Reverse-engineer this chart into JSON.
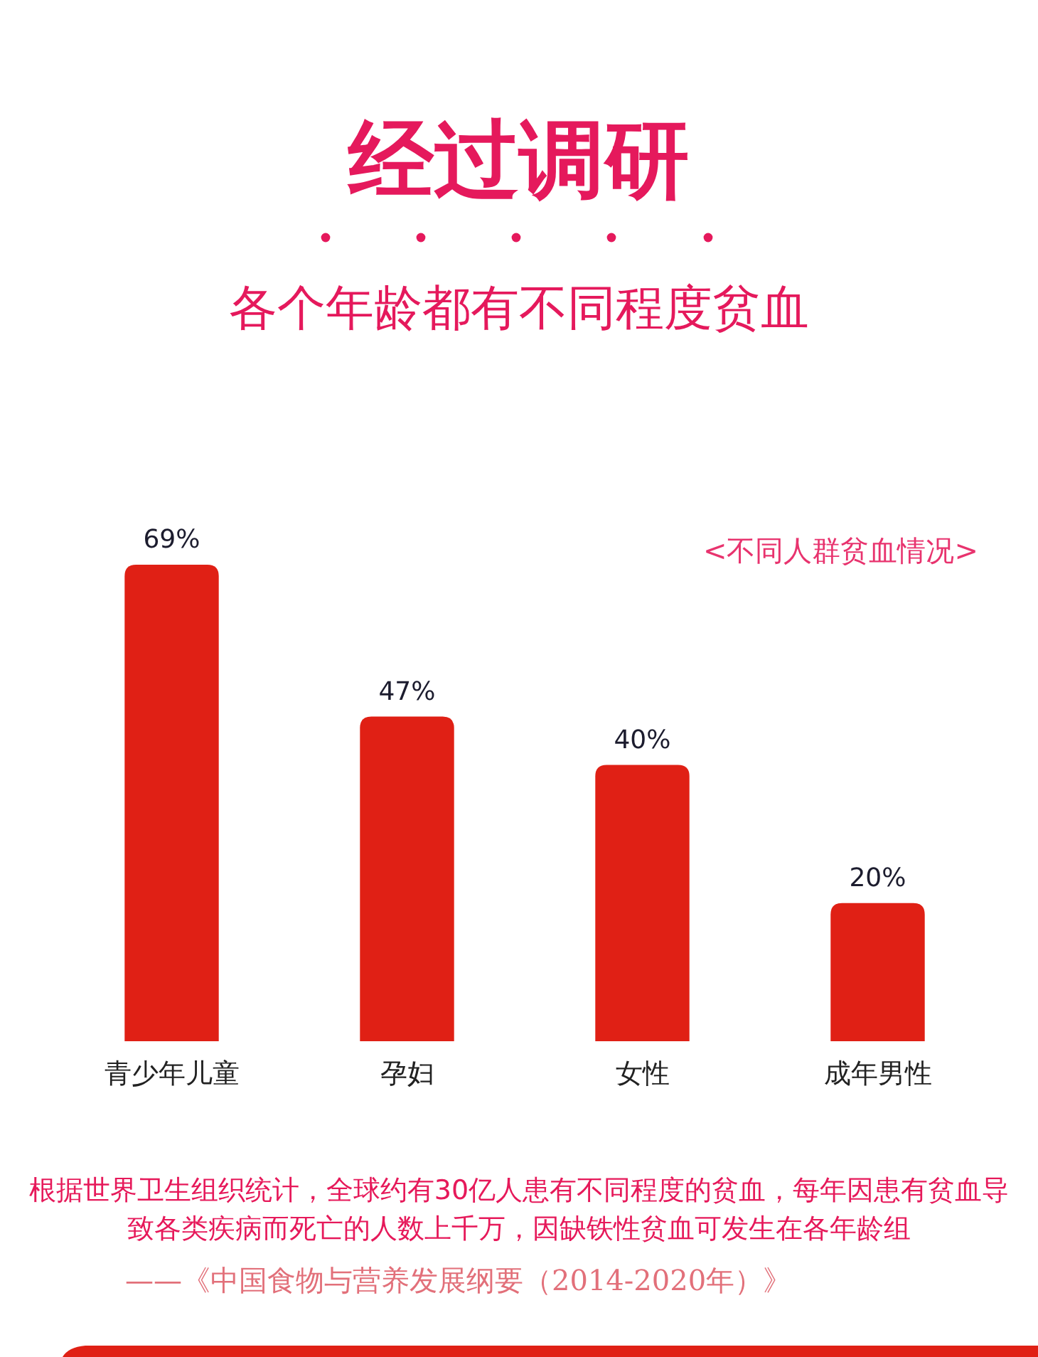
{
  "chart_data": {
    "type": "bar",
    "title": "经过调研",
    "subtitle": "各个年龄都有不同程度贫血",
    "categories": [
      "青少年儿童",
      "孕妇",
      "女性",
      "成年男性"
    ],
    "values": [
      69,
      47,
      40,
      20
    ],
    "color": "#e02015",
    "value_labels": [
      "69%",
      "47%",
      "40%",
      "20%"
    ],
    "annotations": [
      "<不同人群贫血情况>",
      "根据世界卫生组织统计，全球约有30亿人患有不同程度的贫血，每年因患有贫血导致各类疾病而死亡的人数上千万，因缺铁性贫血可发生在各年龄组",
      "——《中国食物与营养发展纲要（2014-2020年）》"
    ]
  }
}
